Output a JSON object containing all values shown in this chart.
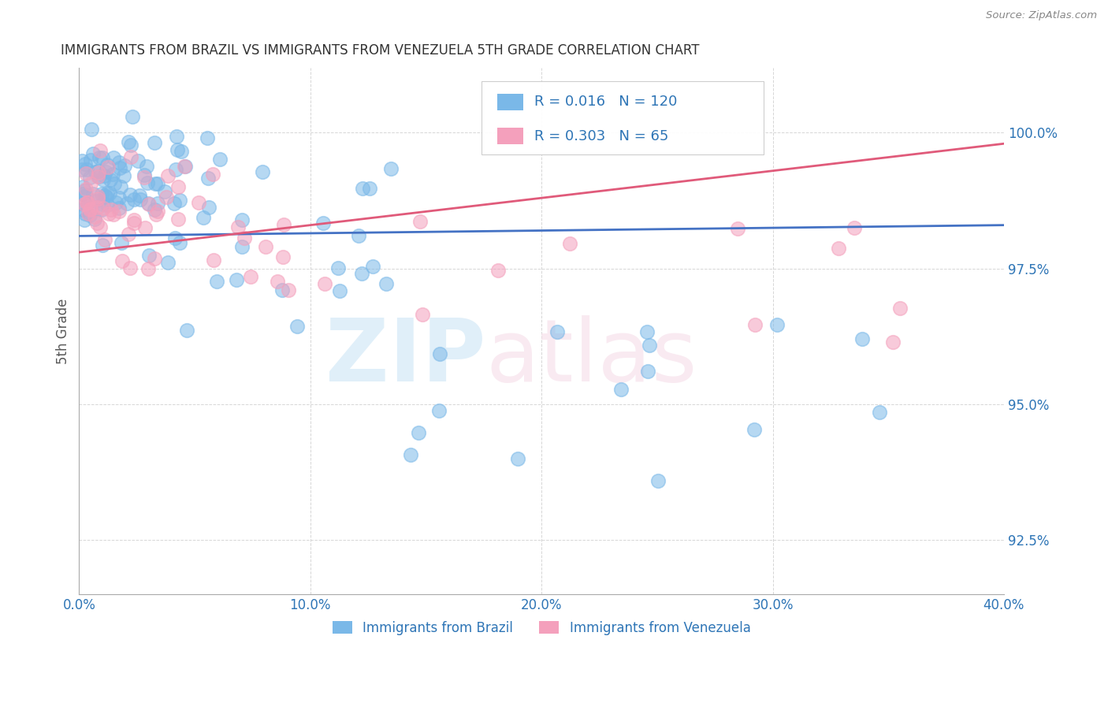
{
  "title": "IMMIGRANTS FROM BRAZIL VS IMMIGRANTS FROM VENEZUELA 5TH GRADE CORRELATION CHART",
  "source": "Source: ZipAtlas.com",
  "xlabel_brazil": "Immigrants from Brazil",
  "xlabel_venezuela": "Immigrants from Venezuela",
  "ylabel": "5th Grade",
  "xlim": [
    0.0,
    40.0
  ],
  "ylim": [
    91.5,
    101.2
  ],
  "yticks": [
    92.5,
    95.0,
    97.5,
    100.0
  ],
  "ytick_labels": [
    "92.5%",
    "95.0%",
    "97.5%",
    "100.0%"
  ],
  "xticks": [
    0.0,
    10.0,
    20.0,
    30.0,
    40.0
  ],
  "xtick_labels": [
    "0.0%",
    "10.0%",
    "20.0%",
    "30.0%",
    "40.0%"
  ],
  "brazil_R": 0.016,
  "brazil_N": 120,
  "venezuela_R": 0.303,
  "venezuela_N": 65,
  "brazil_color": "#7ab8e8",
  "venezuela_color": "#f4a0bc",
  "brazil_line_color": "#4472c4",
  "venezuela_line_color": "#e05a7a",
  "legend_text_color": "#2e75b6",
  "title_color": "#333333",
  "axis_label_color": "#595959",
  "tick_label_color": "#2e75b6",
  "background_color": "#ffffff",
  "grid_color": "#cccccc"
}
